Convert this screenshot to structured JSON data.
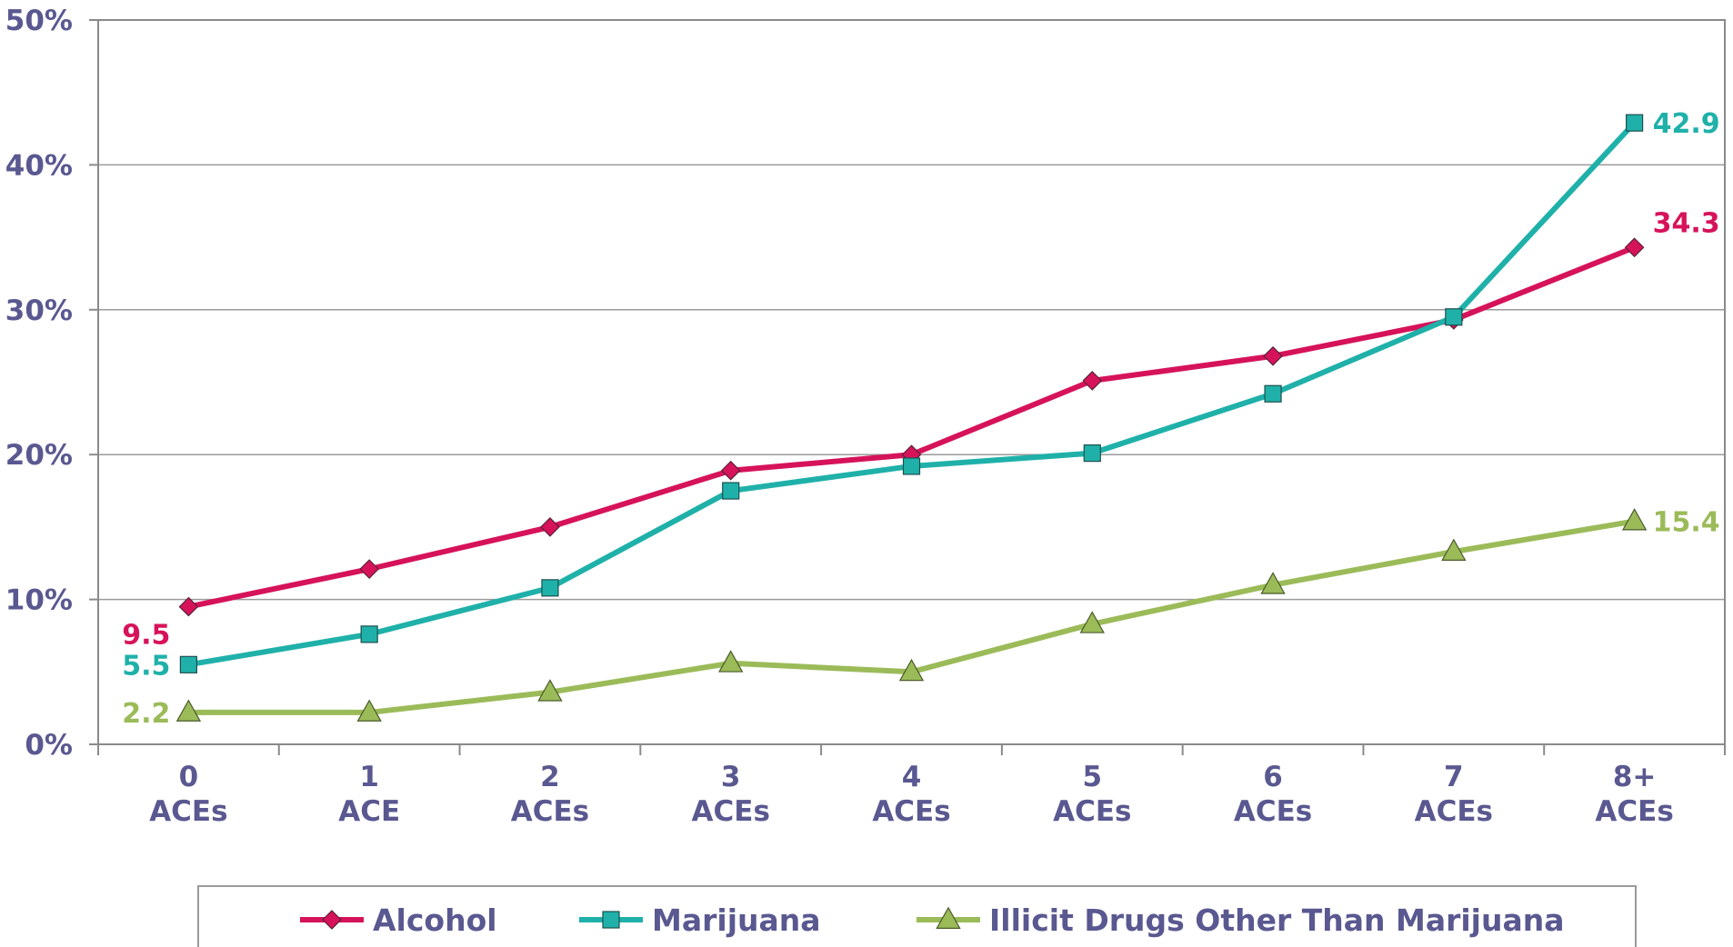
{
  "chart_data": {
    "type": "line",
    "categories": [
      "0 ACEs",
      "1 ACE",
      "2 ACEs",
      "3 ACEs",
      "4 ACEs",
      "5 ACEs",
      "6 ACEs",
      "7 ACEs",
      "8+ ACEs"
    ],
    "category_lines": [
      [
        "0",
        "ACEs"
      ],
      [
        "1",
        "ACE"
      ],
      [
        "2",
        "ACEs"
      ],
      [
        "3",
        "ACEs"
      ],
      [
        "4",
        "ACEs"
      ],
      [
        "5",
        "ACEs"
      ],
      [
        "6",
        "ACEs"
      ],
      [
        "7",
        "ACEs"
      ],
      [
        "8+",
        "ACEs"
      ]
    ],
    "y_ticks": [
      "0%",
      "10%",
      "20%",
      "30%",
      "40%",
      "50%"
    ],
    "ylim": [
      0,
      50
    ],
    "grid": true,
    "legend_position": "bottom",
    "series": [
      {
        "name": "Alcohol",
        "color": "#d6135a",
        "marker": "diamond",
        "values": [
          9.5,
          12.1,
          15.0,
          18.9,
          20.0,
          25.1,
          26.8,
          29.3,
          34.3
        ],
        "labels": [
          {
            "index": 0,
            "text": "9.5"
          },
          {
            "index": 8,
            "text": "34.3"
          }
        ]
      },
      {
        "name": "Marijuana",
        "color": "#1fb1a9",
        "marker": "square",
        "values": [
          5.5,
          7.6,
          10.8,
          17.5,
          19.2,
          20.1,
          24.2,
          29.5,
          42.9
        ],
        "labels": [
          {
            "index": 0,
            "text": "5.5"
          },
          {
            "index": 8,
            "text": "42.9"
          }
        ]
      },
      {
        "name": "Illicit Drugs Other Than Marijuana",
        "color": "#9bbb59",
        "marker": "triangle",
        "values": [
          2.2,
          2.2,
          3.6,
          5.6,
          5.0,
          8.3,
          11.0,
          13.3,
          15.4
        ],
        "labels": [
          {
            "index": 0,
            "text": "2.2"
          },
          {
            "index": 8,
            "text": "15.4"
          }
        ]
      }
    ]
  }
}
